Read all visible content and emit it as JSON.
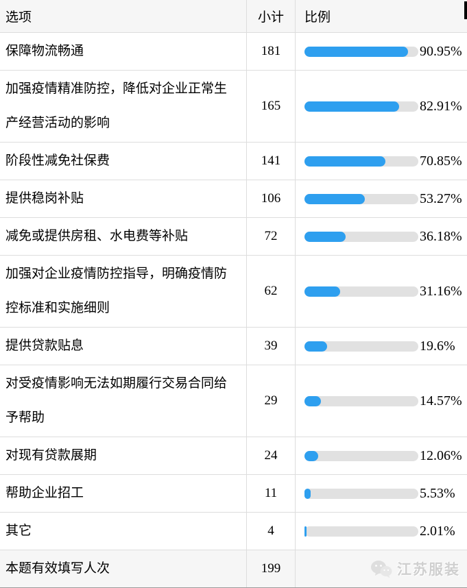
{
  "colors": {
    "bar": "#2E9FEF",
    "track": "#E1E1E1",
    "header_bg": "#F6F6F6",
    "row_border": "#DDDDDD",
    "table_bottom_border": "#9A9A9A",
    "watermark": "#CFCFCF"
  },
  "table": {
    "headers": {
      "option": "选项",
      "count": "小计",
      "ratio": "比例"
    },
    "rows": [
      {
        "option": "保障物流畅通",
        "count": "181",
        "pct": 90.95,
        "pct_label": "90.95%"
      },
      {
        "option": "加强疫情精准防控，降低对企业正常生产经营活动的影响",
        "count": "165",
        "pct": 82.91,
        "pct_label": "82.91%"
      },
      {
        "option": "阶段性减免社保费",
        "count": "141",
        "pct": 70.85,
        "pct_label": "70.85%"
      },
      {
        "option": "提供稳岗补贴",
        "count": "106",
        "pct": 53.27,
        "pct_label": "53.27%"
      },
      {
        "option": "减免或提供房租、水电费等补贴",
        "count": "72",
        "pct": 36.18,
        "pct_label": "36.18%"
      },
      {
        "option": "加强对企业疫情防控指导，明确疫情防控标准和实施细则",
        "count": "62",
        "pct": 31.16,
        "pct_label": "31.16%"
      },
      {
        "option": "提供贷款贴息",
        "count": "39",
        "pct": 19.6,
        "pct_label": "19.6%"
      },
      {
        "option": "对受疫情影响无法如期履行交易合同给予帮助",
        "count": "29",
        "pct": 14.57,
        "pct_label": "14.57%"
      },
      {
        "option": "对现有贷款展期",
        "count": "24",
        "pct": 12.06,
        "pct_label": "12.06%"
      },
      {
        "option": "帮助企业招工",
        "count": "11",
        "pct": 5.53,
        "pct_label": "5.53%"
      },
      {
        "option": "其它",
        "count": "4",
        "pct": 2.01,
        "pct_label": "2.01%"
      }
    ],
    "footer": {
      "label": "本题有效填写人次",
      "count": "199"
    }
  },
  "watermark": {
    "text": "江苏服装",
    "icon": "wechat-icon"
  },
  "chart_data": {
    "type": "bar",
    "orientation": "horizontal",
    "title": "",
    "xlabel": "",
    "ylabel": "",
    "categories": [
      "保障物流畅通",
      "加强疫情精准防控，降低对企业正常生产经营活动的影响",
      "阶段性减免社保费",
      "提供稳岗补贴",
      "减免或提供房租、水电费等补贴",
      "加强对企业疫情防控指导，明确疫情防控标准和实施细则",
      "提供贷款贴息",
      "对受疫情影响无法如期履行交易合同给予帮助",
      "对现有贷款展期",
      "帮助企业招工",
      "其它"
    ],
    "series": [
      {
        "name": "小计",
        "values": [
          181,
          165,
          141,
          106,
          72,
          62,
          39,
          29,
          24,
          11,
          4
        ]
      },
      {
        "name": "比例(%)",
        "values": [
          90.95,
          82.91,
          70.85,
          53.27,
          36.18,
          31.16,
          19.6,
          14.57,
          12.06,
          5.53,
          2.01
        ]
      }
    ],
    "value_labels_shown": true,
    "xlim": [
      0,
      100
    ],
    "legend_position": "none",
    "grid": false,
    "valid_responses_label": "本题有效填写人次",
    "valid_responses": 199
  }
}
